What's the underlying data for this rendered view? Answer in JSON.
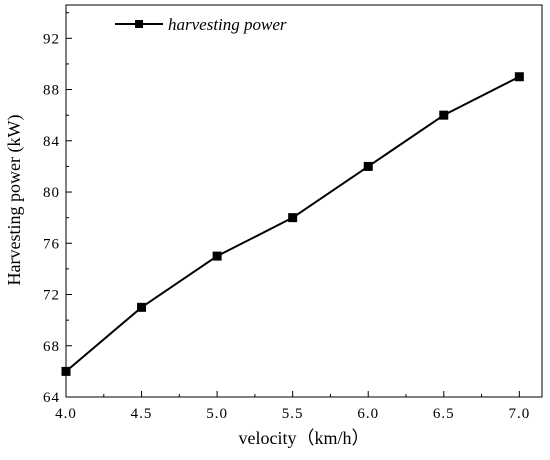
{
  "chart_data": {
    "type": "line",
    "title": "",
    "xlabel": "velocity（km/h）",
    "ylabel": "Harvesting power (kW)",
    "x": [
      4.0,
      4.5,
      5.0,
      5.5,
      6.0,
      6.5,
      7.0
    ],
    "series": [
      {
        "name": "harvesting power",
        "values": [
          66,
          71,
          75,
          78,
          82,
          86,
          89
        ],
        "color": "#000000",
        "marker": "square"
      }
    ],
    "xlim": [
      4.0,
      7.15
    ],
    "ylim": [
      64,
      94.6
    ],
    "xticks": [
      4.0,
      4.5,
      5.0,
      5.5,
      6.0,
      6.5,
      7.0
    ],
    "xtick_labels": [
      "4.0",
      "4.5",
      "5.0",
      "5.5",
      "6.0",
      "6.5",
      "7.0"
    ],
    "yticks": [
      64,
      68,
      72,
      76,
      80,
      84,
      88,
      92
    ],
    "ytick_labels": [
      "64",
      "68",
      "72",
      "76",
      "80",
      "84",
      "88",
      "92"
    ],
    "grid": false,
    "legend_position": "top-left"
  }
}
